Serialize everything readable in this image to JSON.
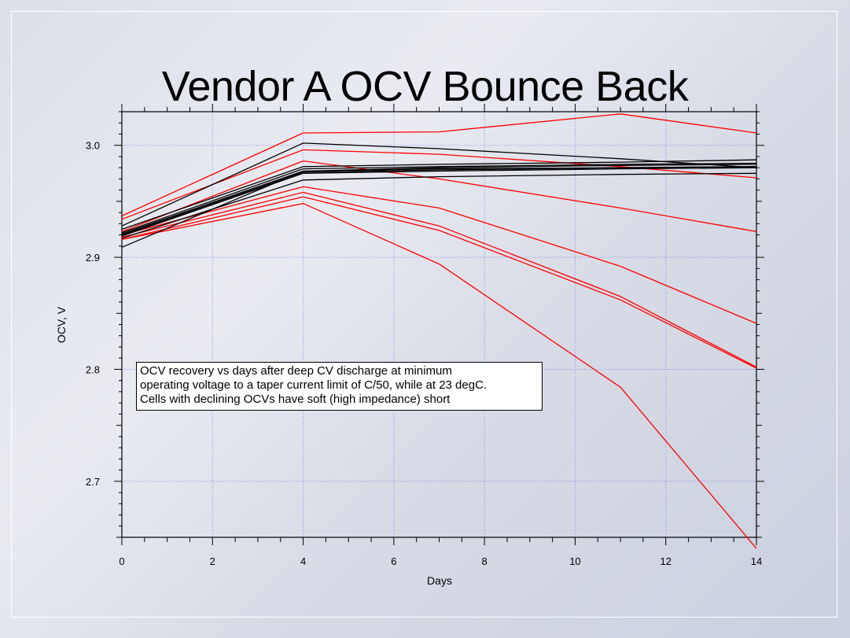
{
  "slide": {
    "title": "Vendor A OCV Bounce Back"
  },
  "annotation": {
    "lines": [
      "OCV recovery vs days after deep CV discharge at minimum",
      "operating voltage to a taper current limit of C/50, while at 23 degC.",
      "Cells with declining OCVs have soft (high impedance) short"
    ]
  },
  "chart_data": {
    "type": "line",
    "title": "Vendor A OCV Bounce Back",
    "xlabel": "Days",
    "ylabel": "OCV, V",
    "xlim": [
      0,
      14
    ],
    "ylim": [
      2.65,
      3.03
    ],
    "xticks": [
      0,
      2,
      4,
      6,
      8,
      10,
      12,
      14
    ],
    "yticks": [
      2.7,
      2.8,
      2.9,
      3.0
    ],
    "ytick_labels": [
      "2.7",
      "2.8",
      "2.9",
      "3.0"
    ],
    "grid": true,
    "colors": {
      "declining": "#ff0000",
      "stable": "#000000",
      "grid": "#8c8cf0"
    },
    "x": [
      0,
      4,
      7,
      11,
      14
    ],
    "series": [
      {
        "group": "declining",
        "values": [
          2.937,
          3.011,
          3.012,
          3.028,
          3.011
        ]
      },
      {
        "group": "declining",
        "values": [
          2.934,
          2.996,
          2.992,
          2.981,
          2.971
        ]
      },
      {
        "group": "declining",
        "values": [
          2.923,
          2.986,
          2.97,
          2.944,
          2.923
        ]
      },
      {
        "group": "declining",
        "values": [
          2.92,
          2.963,
          2.944,
          2.892,
          2.841
        ]
      },
      {
        "group": "declining",
        "values": [
          2.918,
          2.958,
          2.928,
          2.865,
          2.802
        ]
      },
      {
        "group": "declining",
        "values": [
          2.916,
          2.954,
          2.924,
          2.862,
          2.801
        ]
      },
      {
        "group": "declining",
        "values": [
          2.916,
          2.948,
          2.894,
          2.784,
          2.64
        ]
      },
      {
        "group": "stable",
        "values": [
          2.928,
          3.002,
          2.997,
          2.988,
          2.98
        ]
      },
      {
        "group": "stable",
        "values": [
          2.925,
          2.981,
          2.983,
          2.985,
          2.987
        ]
      },
      {
        "group": "stable",
        "values": [
          2.922,
          2.979,
          2.981,
          2.983,
          2.984
        ]
      },
      {
        "group": "stable",
        "values": [
          2.921,
          2.977,
          2.98,
          2.982,
          2.983
        ]
      },
      {
        "group": "stable",
        "values": [
          2.92,
          2.976,
          2.978,
          2.98,
          2.981
        ]
      },
      {
        "group": "stable",
        "values": [
          2.919,
          2.975,
          2.977,
          2.979,
          2.98
        ]
      },
      {
        "group": "stable",
        "values": [
          2.917,
          2.969,
          2.972,
          2.974,
          2.975
        ]
      },
      {
        "group": "stable",
        "values": [
          2.909,
          2.977,
          2.979,
          2.98,
          2.981
        ]
      }
    ]
  }
}
